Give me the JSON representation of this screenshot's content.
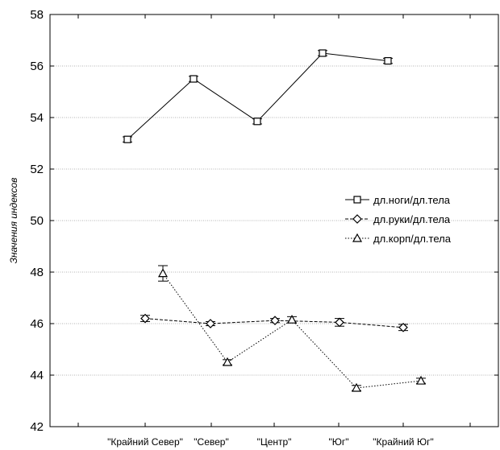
{
  "chart_data": {
    "type": "line",
    "title": "",
    "xlabel": "",
    "ylabel": "Значения индексов",
    "categories": [
      "\"Крайний Север\"",
      "\"Север\"",
      "\"Центр\"",
      "\"Юг\"",
      "\"Крайний Юг\""
    ],
    "ylim": [
      42,
      58
    ],
    "yticks": [
      42,
      44,
      46,
      48,
      50,
      52,
      54,
      56,
      58
    ],
    "grid": true,
    "legend_position": "center-right",
    "series": [
      {
        "name": "дл.ноги/дл.тела",
        "marker": "square",
        "line_style": "solid",
        "values": [
          53.15,
          55.5,
          53.85,
          56.5,
          56.2
        ],
        "errors": [
          0.1,
          0.1,
          0.1,
          0.1,
          0.1
        ]
      },
      {
        "name": "дл.руки/дл.тела",
        "marker": "diamond",
        "line_style": "dashed",
        "values": [
          46.2,
          46.0,
          46.12,
          46.05,
          45.85
        ],
        "errors": [
          0.12,
          0.08,
          0.08,
          0.15,
          0.12
        ]
      },
      {
        "name": "дл.корп/дл.тела",
        "marker": "triangle",
        "line_style": "dotted",
        "values": [
          47.95,
          44.5,
          46.15,
          43.5,
          43.78
        ],
        "errors": [
          0.3,
          0.1,
          0.12,
          0.1,
          0.1
        ]
      }
    ]
  }
}
